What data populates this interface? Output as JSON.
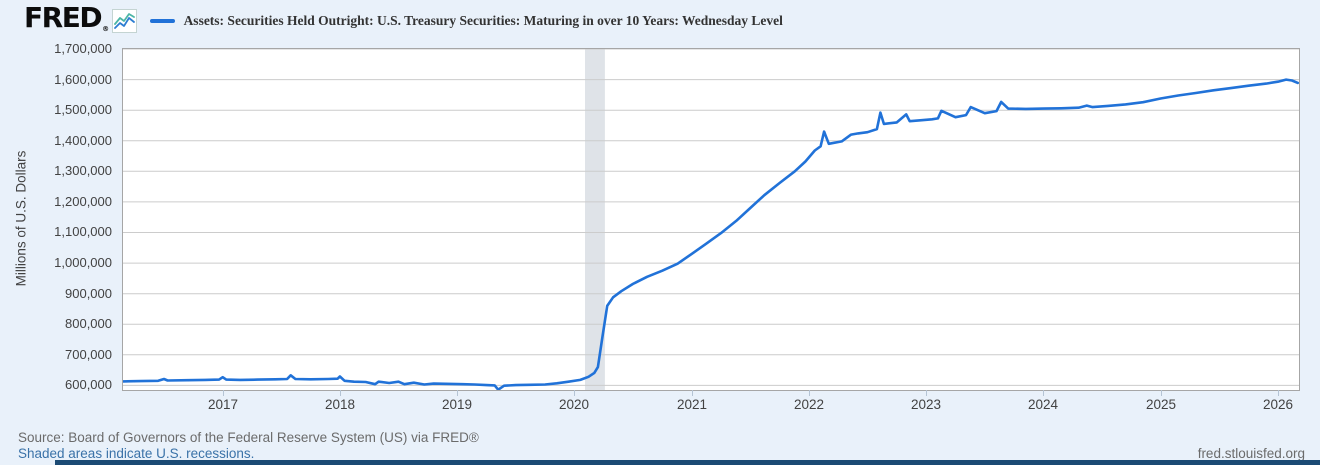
{
  "header": {
    "logo_text": "FRED",
    "logo_registered": "®",
    "logo_icon": "line-chart-icon"
  },
  "footer": {
    "source_line": "Source: Board of Governors of the Federal Reserve System (US) via FRED®",
    "recession_note": "Shaded areas indicate U.S. recessions.",
    "site_link": "fred.stlouisfed.org"
  },
  "colors": {
    "line": "#2172d8",
    "page_background": "#e9f1fa",
    "plot_background": "#ffffff",
    "gridline": "#cccccc",
    "plot_border": "#a6a6a6",
    "recession_band": "#dfe3e8",
    "axis_text": "#424242",
    "footer_text": "#6b6b6b",
    "link_text": "#3a72a8",
    "bottom_bar": "#1b4a74",
    "logo_icon_teal": "#4db6a6",
    "logo_icon_blue": "#2d7dd2"
  },
  "chart_data": {
    "type": "line",
    "title": "Assets: Securities Held Outright: U.S. Treasury Securities: Maturing in over 10 Years: Wednesday Level",
    "xlabel": "",
    "ylabel": "Millions of U.S. Dollars",
    "legend_position": "top",
    "grid": "horizontal",
    "x_domain": [
      2016.15,
      2026.18
    ],
    "y_domain": [
      585000,
      1700000
    ],
    "x_ticks": [
      2017,
      2018,
      2019,
      2020,
      2021,
      2022,
      2023,
      2024,
      2025,
      2026
    ],
    "y_ticks": [
      600000,
      700000,
      800000,
      900000,
      1000000,
      1100000,
      1200000,
      1300000,
      1400000,
      1500000,
      1600000,
      1700000
    ],
    "recession_bands": [
      [
        2020.09,
        2020.26
      ]
    ],
    "series": [
      {
        "name": "Assets: Securities Held Outright: U.S. Treasury Securities: Maturing in over 10 Years: Wednesday Level",
        "x": [
          2016.15,
          2016.3,
          2016.45,
          2016.5,
          2016.53,
          2016.7,
          2016.85,
          2016.97,
          2017.0,
          2017.03,
          2017.15,
          2017.3,
          2017.45,
          2017.55,
          2017.58,
          2017.62,
          2017.75,
          2017.9,
          2017.98,
          2018.0,
          2018.04,
          2018.12,
          2018.22,
          2018.3,
          2018.33,
          2018.42,
          2018.5,
          2018.55,
          2018.63,
          2018.72,
          2018.8,
          2018.95,
          2019.05,
          2019.15,
          2019.25,
          2019.32,
          2019.35,
          2019.4,
          2019.5,
          2019.62,
          2019.75,
          2019.85,
          2019.95,
          2020.05,
          2020.12,
          2020.17,
          2020.2,
          2020.24,
          2020.28,
          2020.33,
          2020.4,
          2020.5,
          2020.62,
          2020.75,
          2020.88,
          2021.0,
          2021.12,
          2021.25,
          2021.38,
          2021.5,
          2021.62,
          2021.75,
          2021.88,
          2021.97,
          2022.05,
          2022.1,
          2022.13,
          2022.17,
          2022.28,
          2022.36,
          2022.42,
          2022.5,
          2022.58,
          2022.61,
          2022.64,
          2022.75,
          2022.83,
          2022.86,
          2022.95,
          2023.05,
          2023.1,
          2023.13,
          2023.25,
          2023.34,
          2023.38,
          2023.5,
          2023.6,
          2023.64,
          2023.7,
          2023.85,
          2024.0,
          2024.15,
          2024.3,
          2024.37,
          2024.42,
          2024.55,
          2024.7,
          2024.85,
          2025.0,
          2025.15,
          2025.3,
          2025.45,
          2025.6,
          2025.75,
          2025.9,
          2026.0,
          2026.07,
          2026.12,
          2026.17
        ],
        "y": [
          613000,
          614000,
          615000,
          621000,
          616000,
          617000,
          618000,
          619000,
          627000,
          619000,
          618000,
          619000,
          620000,
          621000,
          633000,
          621000,
          620000,
          621000,
          622000,
          629000,
          615000,
          612000,
          611000,
          604000,
          612000,
          608000,
          612000,
          604000,
          609000,
          603000,
          606000,
          605000,
          604000,
          603000,
          601000,
          600000,
          586000,
          599000,
          601000,
          602000,
          603000,
          607000,
          612000,
          618000,
          628000,
          641000,
          660000,
          760000,
          860000,
          888000,
          908000,
          932000,
          955000,
          975000,
          998000,
          1030000,
          1062000,
          1098000,
          1138000,
          1180000,
          1222000,
          1262000,
          1300000,
          1332000,
          1368000,
          1382000,
          1430000,
          1390000,
          1398000,
          1420000,
          1424000,
          1428000,
          1438000,
          1492000,
          1455000,
          1460000,
          1486000,
          1464000,
          1467000,
          1470000,
          1473000,
          1498000,
          1477000,
          1484000,
          1510000,
          1490000,
          1497000,
          1527000,
          1505000,
          1504000,
          1505000,
          1506000,
          1508000,
          1515000,
          1510000,
          1514000,
          1519000,
          1526000,
          1538000,
          1548000,
          1556000,
          1565000,
          1572000,
          1580000,
          1587000,
          1593000,
          1600000,
          1597000,
          1589000
        ]
      }
    ]
  }
}
